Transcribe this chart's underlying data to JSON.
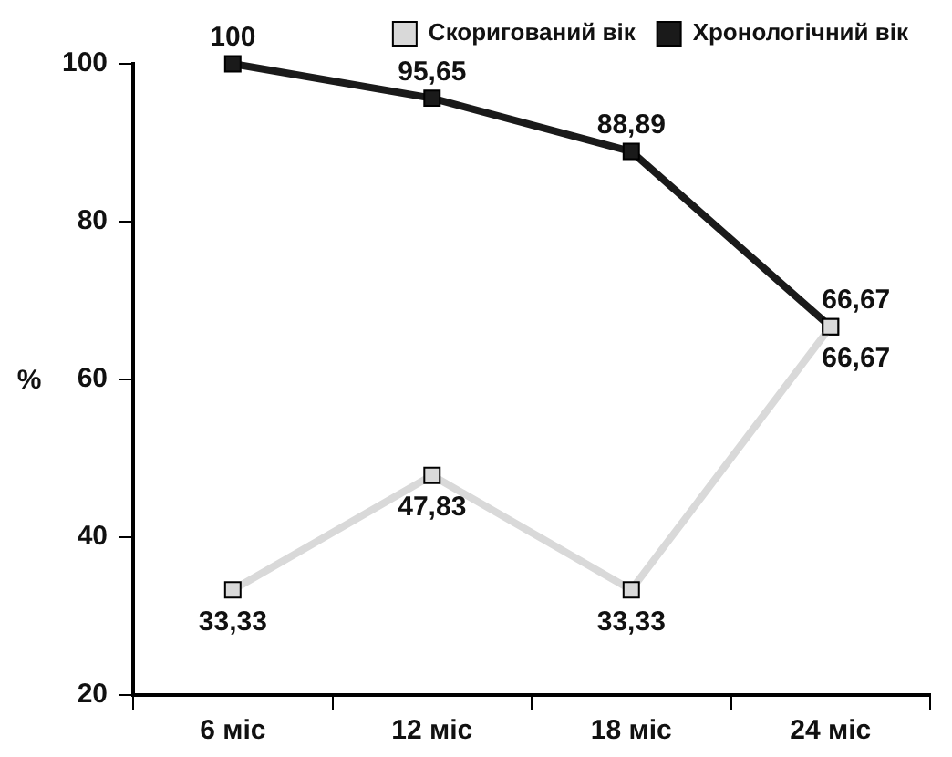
{
  "chart_data": {
    "type": "line",
    "ylabel": "%",
    "categories": [
      "6 міс",
      "12 міс",
      "18 міс",
      "24 міс"
    ],
    "series": [
      {
        "name": "Скоригований вік",
        "color": "#d9d9d9",
        "values": [
          33.33,
          47.83,
          33.33,
          66.67
        ],
        "value_labels": [
          "33,33",
          "47,83",
          "33,33",
          "66,67"
        ]
      },
      {
        "name": "Хронологічний вік",
        "color": "#1a1a1a",
        "values": [
          100,
          95.65,
          88.89,
          66.67
        ],
        "value_labels": [
          "100",
          "95,65",
          "88,89",
          "66,67"
        ]
      }
    ],
    "ylim": [
      20,
      100
    ],
    "yticks": [
      20,
      40,
      60,
      80,
      100
    ],
    "grid": false,
    "legend": "top right",
    "marker": "square",
    "line_style": "solid"
  }
}
